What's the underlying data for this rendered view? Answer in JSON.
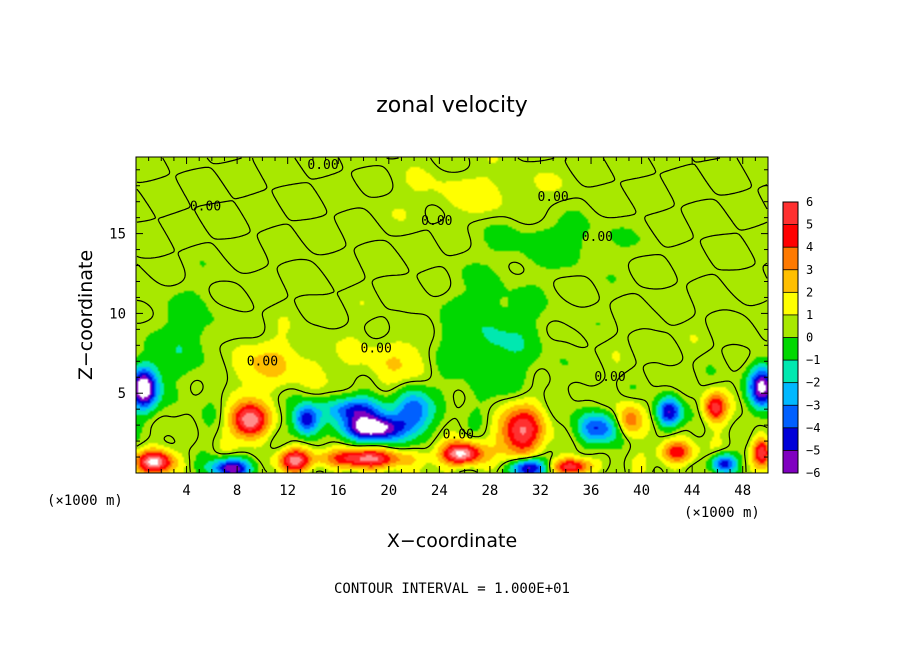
{
  "chart_data": {
    "type": "heatmap",
    "title": "zonal velocity",
    "xlabel": "X−coordinate",
    "ylabel": "Z−coordinate",
    "x_unit_left": "(×1000 m)",
    "x_unit_right": "(×1000 m)",
    "xlim": [
      0,
      50
    ],
    "ylim": [
      0,
      19.8
    ],
    "x_ticks": [
      4,
      8,
      12,
      16,
      20,
      24,
      28,
      32,
      36,
      40,
      44,
      48
    ],
    "x_tick_labels": [
      "4",
      "8",
      "12",
      "16",
      "20",
      "24",
      "28",
      "32",
      "36",
      "40",
      "44",
      "48"
    ],
    "y_ticks": [
      5,
      10,
      15
    ],
    "y_tick_labels": [
      "5",
      "10",
      "15"
    ],
    "contour_interval_text": "CONTOUR INTERVAL = 1.000E+01",
    "colorbar": {
      "levels": [
        6,
        5,
        4,
        3,
        2,
        1,
        0,
        -1,
        -2,
        -3,
        -4,
        -5,
        -6
      ],
      "labels": [
        "6",
        "5",
        "4",
        "3",
        "2",
        "1",
        "0",
        "−1",
        "−2",
        "−3",
        "−4",
        "−5",
        "−6"
      ],
      "colors": [
        "#ff8c8c",
        "#ff3030",
        "#ff0000",
        "#ff7a00",
        "#ffbf00",
        "#ffff00",
        "#a8e800",
        "#00d800",
        "#00e8b0",
        "#00b8ff",
        "#0060ff",
        "#0000d8",
        "#8000c0"
      ]
    },
    "contour_labels": [
      {
        "text": "0.00",
        "x": 14.8,
        "y": 19.3
      },
      {
        "text": "0.00",
        "x": 5.5,
        "y": 16.7
      },
      {
        "text": "0.00",
        "x": 23.8,
        "y": 15.8
      },
      {
        "text": "0.00",
        "x": 33.0,
        "y": 17.3
      },
      {
        "text": "0.00",
        "x": 36.5,
        "y": 14.8
      },
      {
        "text": "0.00",
        "x": 10.0,
        "y": 7.0
      },
      {
        "text": "0.00",
        "x": 19.0,
        "y": 7.8
      },
      {
        "text": "0.00",
        "x": 37.5,
        "y": 6.0
      },
      {
        "text": "0.00",
        "x": 25.5,
        "y": 2.4
      }
    ],
    "anomalies": [
      {
        "x": 0.6,
        "z": 5.3,
        "amp": -7.5,
        "sx": 1.1,
        "sz": 1.3
      },
      {
        "x": 49.5,
        "z": 5.4,
        "amp": -7.0,
        "sx": 1.0,
        "sz": 1.3
      },
      {
        "x": 1.5,
        "z": 0.7,
        "amp": 6.5,
        "sx": 1.5,
        "sz": 0.7
      },
      {
        "x": 7.5,
        "z": 0.3,
        "amp": -6.5,
        "sx": 1.5,
        "sz": 0.6
      },
      {
        "x": 9.0,
        "z": 3.3,
        "amp": 6.5,
        "sx": 1.4,
        "sz": 1.1
      },
      {
        "x": 12.5,
        "z": 0.8,
        "amp": 5.5,
        "sx": 1.2,
        "sz": 0.7
      },
      {
        "x": 13.5,
        "z": 3.3,
        "amp": -5.5,
        "sx": 1.0,
        "sz": 1.0
      },
      {
        "x": 18.8,
        "z": 2.8,
        "amp": -8.0,
        "sx": 2.2,
        "sz": 0.8
      },
      {
        "x": 17.5,
        "z": 4.0,
        "amp": -4.5,
        "sx": 2.5,
        "sz": 0.8
      },
      {
        "x": 22.0,
        "z": 3.8,
        "amp": -4.0,
        "sx": 1.4,
        "sz": 1.4
      },
      {
        "x": 18.0,
        "z": 0.9,
        "amp": 5.5,
        "sx": 3.5,
        "sz": 0.6
      },
      {
        "x": 25.8,
        "z": 1.2,
        "amp": 7.0,
        "sx": 1.6,
        "sz": 0.7
      },
      {
        "x": 30.5,
        "z": 2.6,
        "amp": 5.5,
        "sx": 1.8,
        "sz": 1.6
      },
      {
        "x": 31.0,
        "z": 0.3,
        "amp": -6.5,
        "sx": 1.4,
        "sz": 0.6
      },
      {
        "x": 34.5,
        "z": 0.4,
        "amp": 5.0,
        "sx": 1.6,
        "sz": 0.5
      },
      {
        "x": 36.5,
        "z": 2.8,
        "amp": -4.5,
        "sx": 1.6,
        "sz": 1.0
      },
      {
        "x": 39.0,
        "z": 3.3,
        "amp": 3.5,
        "sx": 1.0,
        "sz": 1.0
      },
      {
        "x": 42.2,
        "z": 3.8,
        "amp": -5.5,
        "sx": 1.0,
        "sz": 0.9
      },
      {
        "x": 42.8,
        "z": 1.3,
        "amp": 4.5,
        "sx": 1.3,
        "sz": 0.7
      },
      {
        "x": 45.8,
        "z": 4.1,
        "amp": 5.0,
        "sx": 0.9,
        "sz": 0.9
      },
      {
        "x": 46.5,
        "z": 0.6,
        "amp": -5.0,
        "sx": 1.0,
        "sz": 0.6
      },
      {
        "x": 49.5,
        "z": 1.3,
        "amp": 5.5,
        "sx": 0.7,
        "sz": 0.9
      },
      {
        "x": 10.5,
        "z": 6.8,
        "amp": 1.6,
        "sx": 4.0,
        "sz": 1.5
      },
      {
        "x": 20.5,
        "z": 7.0,
        "amp": 1.3,
        "sx": 3.0,
        "sz": 1.6
      },
      {
        "x": 28.0,
        "z": 8.0,
        "amp": -1.6,
        "sx": 4.0,
        "sz": 3.5
      },
      {
        "x": 33.0,
        "z": 14.5,
        "amp": -1.0,
        "sx": 5.0,
        "sz": 1.5
      },
      {
        "x": 27.0,
        "z": 17.5,
        "amp": 0.8,
        "sx": 6.0,
        "sz": 1.5
      },
      {
        "x": 4.0,
        "z": 8.0,
        "amp": -1.2,
        "sx": 3.0,
        "sz": 3.0
      }
    ]
  }
}
